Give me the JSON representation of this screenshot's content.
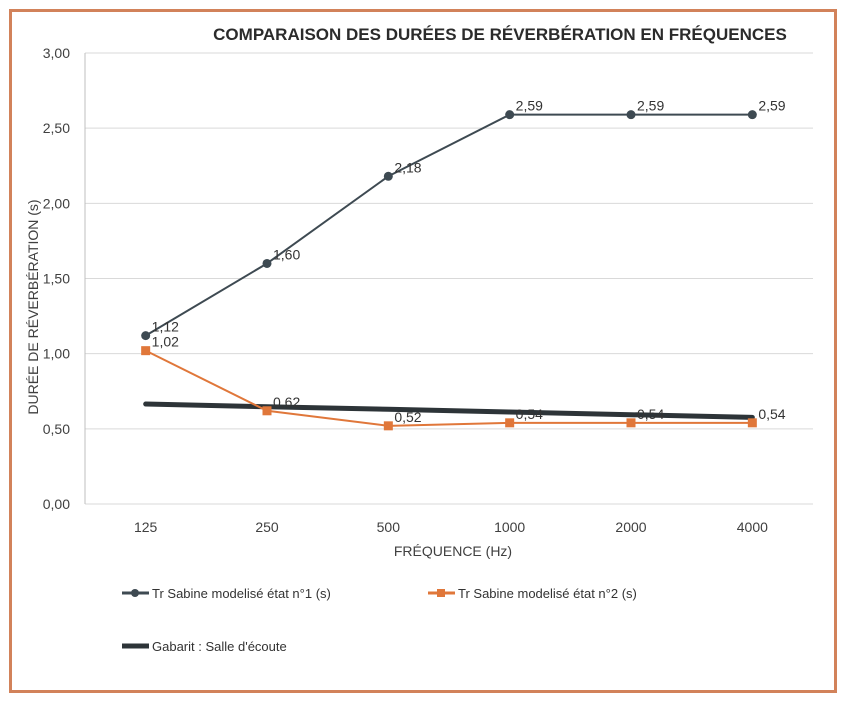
{
  "chart_data": {
    "type": "line",
    "title": "COMPARAISON DES DURÉES DE RÉVERBÉRATION EN FRÉQUENCES",
    "xlabel": "FRÉQUENCE (Hz)",
    "ylabel": "DURÉE DE RÉVERBÉRATION (s)",
    "categories": [
      "125",
      "250",
      "500",
      "1000",
      "2000",
      "4000"
    ],
    "ylim": [
      0,
      3
    ],
    "yticks": [
      "0,00",
      "0,50",
      "1,00",
      "1,50",
      "2,00",
      "2,50",
      "3,00"
    ],
    "grid": true,
    "legend_position": "bottom",
    "series": [
      {
        "name": "Tr Sabine modelisé état n°1 (s)",
        "values": [
          1.12,
          1.6,
          2.18,
          2.59,
          2.59,
          2.59
        ],
        "labels": [
          "1,12",
          "1,60",
          "2,18",
          "2,59",
          "2,59",
          "2,59"
        ],
        "color": "#3e4a52",
        "marker": "circle"
      },
      {
        "name": "Tr Sabine modelisé état n°2 (s)",
        "values": [
          1.02,
          0.62,
          0.52,
          0.54,
          0.54,
          0.54
        ],
        "labels": [
          "1,02",
          "0,62",
          "0,52",
          "0,54",
          "0,54",
          "0,54"
        ],
        "color": "#e0773a",
        "marker": "square"
      },
      {
        "name": "Gabarit :  Salle d'écoute",
        "values": [
          0.665,
          0.647,
          0.63,
          0.612,
          0.594,
          0.576
        ],
        "color": "#2d3438",
        "marker": "none"
      }
    ]
  }
}
